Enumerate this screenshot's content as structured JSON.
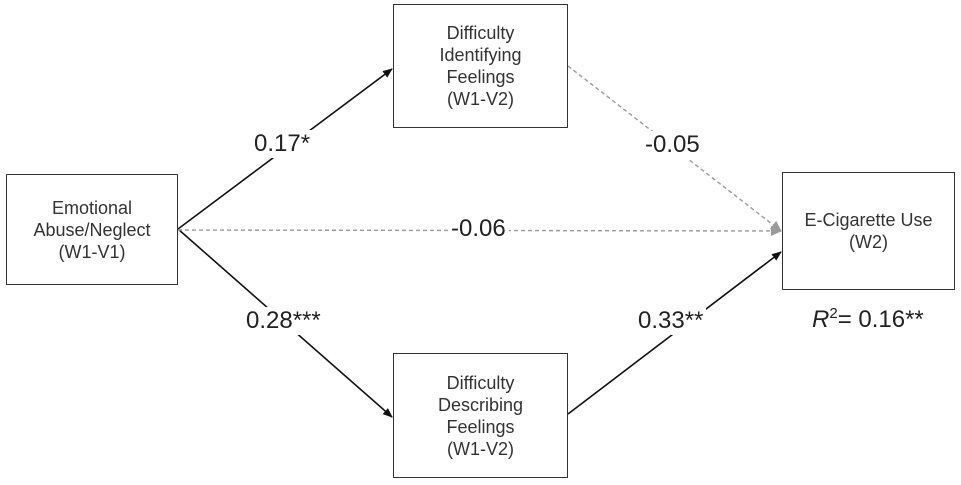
{
  "nodes": {
    "emotional_abuse": {
      "lines": [
        "Emotional",
        "Abuse/Neglect",
        "(W1-V1)"
      ]
    },
    "difficulty_identifying": {
      "lines": [
        "Difficulty",
        "Identifying",
        "Feelings",
        "(W1-V2)"
      ]
    },
    "difficulty_describing": {
      "lines": [
        "Difficulty",
        "Describing",
        "Feelings",
        "(W1-V2)"
      ]
    },
    "ecigarette": {
      "lines": [
        "E-Cigarette Use",
        "(W2)"
      ]
    }
  },
  "paths": {
    "abuse_to_identifying": {
      "coefficient": "0.17*",
      "style": "solid"
    },
    "identifying_to_ecig": {
      "coefficient": "-0.05",
      "style": "dashed"
    },
    "abuse_to_ecig": {
      "coefficient": "-0.06",
      "style": "dashed"
    },
    "abuse_to_describing": {
      "coefficient": "0.28***",
      "style": "solid"
    },
    "describing_to_ecig": {
      "coefficient": "0.33**",
      "style": "solid"
    }
  },
  "r_squared": {
    "symbol": "R",
    "superscript": "2",
    "value": "= 0.16**"
  },
  "colors": {
    "solid_path": "#111111",
    "dashed_path": "#9a9a9a",
    "box_border": "#333333"
  }
}
